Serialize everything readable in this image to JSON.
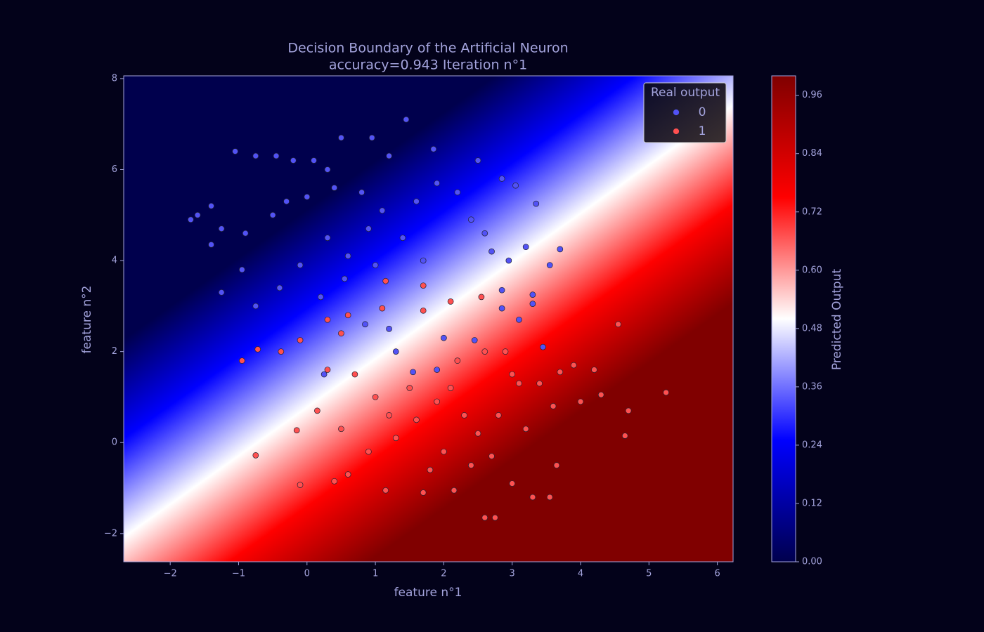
{
  "chart_data": {
    "type": "scatter",
    "title": "Decision Boundary of the Artificial Neuron",
    "subtitle": "accuracy=0.943 Iteration n°1",
    "x_label": "feature n°1",
    "y_label": "feature n°2",
    "xlim": [
      -2.68,
      6.23
    ],
    "ylim": [
      -2.62,
      8.06
    ],
    "xticks": [
      {
        "value": -2,
        "label": "−2"
      },
      {
        "value": -1,
        "label": "−1"
      },
      0,
      1,
      2,
      3,
      4,
      5,
      6
    ],
    "yticks": [
      {
        "value": -2,
        "label": "−2"
      },
      0,
      2,
      4,
      6,
      8
    ],
    "legend_title": "Real output",
    "legend_position": "upper right",
    "series": [
      {
        "name": "0",
        "color": "#5252f5",
        "x": [
          -1.7,
          -1.6,
          -1.4,
          -1.05,
          -0.75,
          -0.45,
          -0.2,
          0.1,
          0.3,
          0.5,
          0.95,
          1.45,
          1.2,
          1.85,
          0.8,
          0.0,
          -0.5,
          -0.9,
          -1.25,
          -1.4,
          -0.95,
          -1.25,
          -0.75,
          -0.4,
          -0.1,
          0.3,
          0.6,
          0.9,
          1.1,
          1.4,
          1.6,
          1.9,
          2.2,
          2.4,
          2.6,
          2.7,
          2.95,
          3.2,
          3.7,
          3.55,
          3.05,
          2.85,
          3.35,
          2.5,
          0.2,
          0.55,
          0.85,
          1.2,
          1.3,
          1.55,
          0.25,
          2.0,
          2.85,
          2.85,
          3.1,
          3.3,
          3.3,
          3.45,
          2.45,
          1.9,
          -0.3,
          0.4,
          1.7,
          1.0
        ],
        "y": [
          4.9,
          5.0,
          5.2,
          6.4,
          6.3,
          6.3,
          6.2,
          6.2,
          6.0,
          6.7,
          6.7,
          7.1,
          6.3,
          6.45,
          5.5,
          5.4,
          5.0,
          4.6,
          4.7,
          4.35,
          3.8,
          3.3,
          3.0,
          3.4,
          3.9,
          4.5,
          4.1,
          4.7,
          5.1,
          4.5,
          5.3,
          5.7,
          5.5,
          4.9,
          4.6,
          4.2,
          4.0,
          4.3,
          4.25,
          3.9,
          5.65,
          5.8,
          5.25,
          6.2,
          3.2,
          3.6,
          2.6,
          2.5,
          2.0,
          1.55,
          1.5,
          2.3,
          3.35,
          2.95,
          2.7,
          3.25,
          3.05,
          2.1,
          2.25,
          1.6,
          5.3,
          5.6,
          4.0,
          3.9
        ]
      },
      {
        "name": "1",
        "color": "#ff5050",
        "x": [
          -0.75,
          -0.95,
          -0.72,
          -0.38,
          -0.1,
          -0.1,
          -0.15,
          0.15,
          0.3,
          0.3,
          0.5,
          0.6,
          1.1,
          1.15,
          1.7,
          1.7,
          2.1,
          2.55,
          4.55,
          5.25,
          4.7,
          4.65,
          4.2,
          3.9,
          3.7,
          3.6,
          3.65,
          3.55,
          3.3,
          2.75,
          2.6,
          2.15,
          1.7,
          1.15,
          0.4,
          0.6,
          0.9,
          1.3,
          1.6,
          1.9,
          2.1,
          2.3,
          2.5,
          2.8,
          3.0,
          3.1,
          3.2,
          2.2,
          2.6,
          2.0,
          1.5,
          1.0,
          0.7,
          2.9,
          3.4,
          4.0,
          4.3,
          2.4,
          1.8,
          2.7,
          3.0,
          1.2,
          0.5
        ],
        "y": [
          -0.28,
          1.8,
          2.05,
          2.0,
          2.25,
          -0.93,
          0.27,
          0.7,
          1.6,
          2.7,
          2.4,
          2.8,
          2.95,
          3.55,
          3.45,
          2.9,
          3.1,
          3.2,
          2.6,
          1.1,
          0.7,
          0.15,
          1.6,
          1.7,
          1.55,
          0.8,
          -0.5,
          -1.2,
          -1.2,
          -1.65,
          -1.65,
          -1.05,
          -1.1,
          -1.05,
          -0.85,
          -0.7,
          -0.2,
          0.1,
          0.5,
          0.9,
          1.2,
          0.6,
          0.2,
          0.6,
          1.5,
          1.3,
          0.3,
          1.8,
          2.0,
          -0.2,
          1.2,
          1.0,
          1.5,
          2.0,
          1.3,
          0.9,
          1.05,
          -0.5,
          -0.6,
          -0.3,
          -0.9,
          0.6,
          0.3
        ]
      }
    ],
    "colorbar": {
      "label": "Predicted Output",
      "lim": [
        0,
        1
      ],
      "ticks": [
        {
          "value": 0,
          "label": "0.00"
        },
        {
          "value": 0.12,
          "label": "0.12"
        },
        {
          "value": 0.24,
          "label": "0.24"
        },
        {
          "value": 0.36,
          "label": "0.36"
        },
        {
          "value": 0.48,
          "label": "0.48"
        },
        {
          "value": 0.6,
          "label": "0.60"
        },
        {
          "value": 0.72,
          "label": "0.72"
        },
        {
          "value": 0.84,
          "label": "0.84"
        },
        {
          "value": 0.96,
          "label": "0.96"
        }
      ]
    }
  }
}
